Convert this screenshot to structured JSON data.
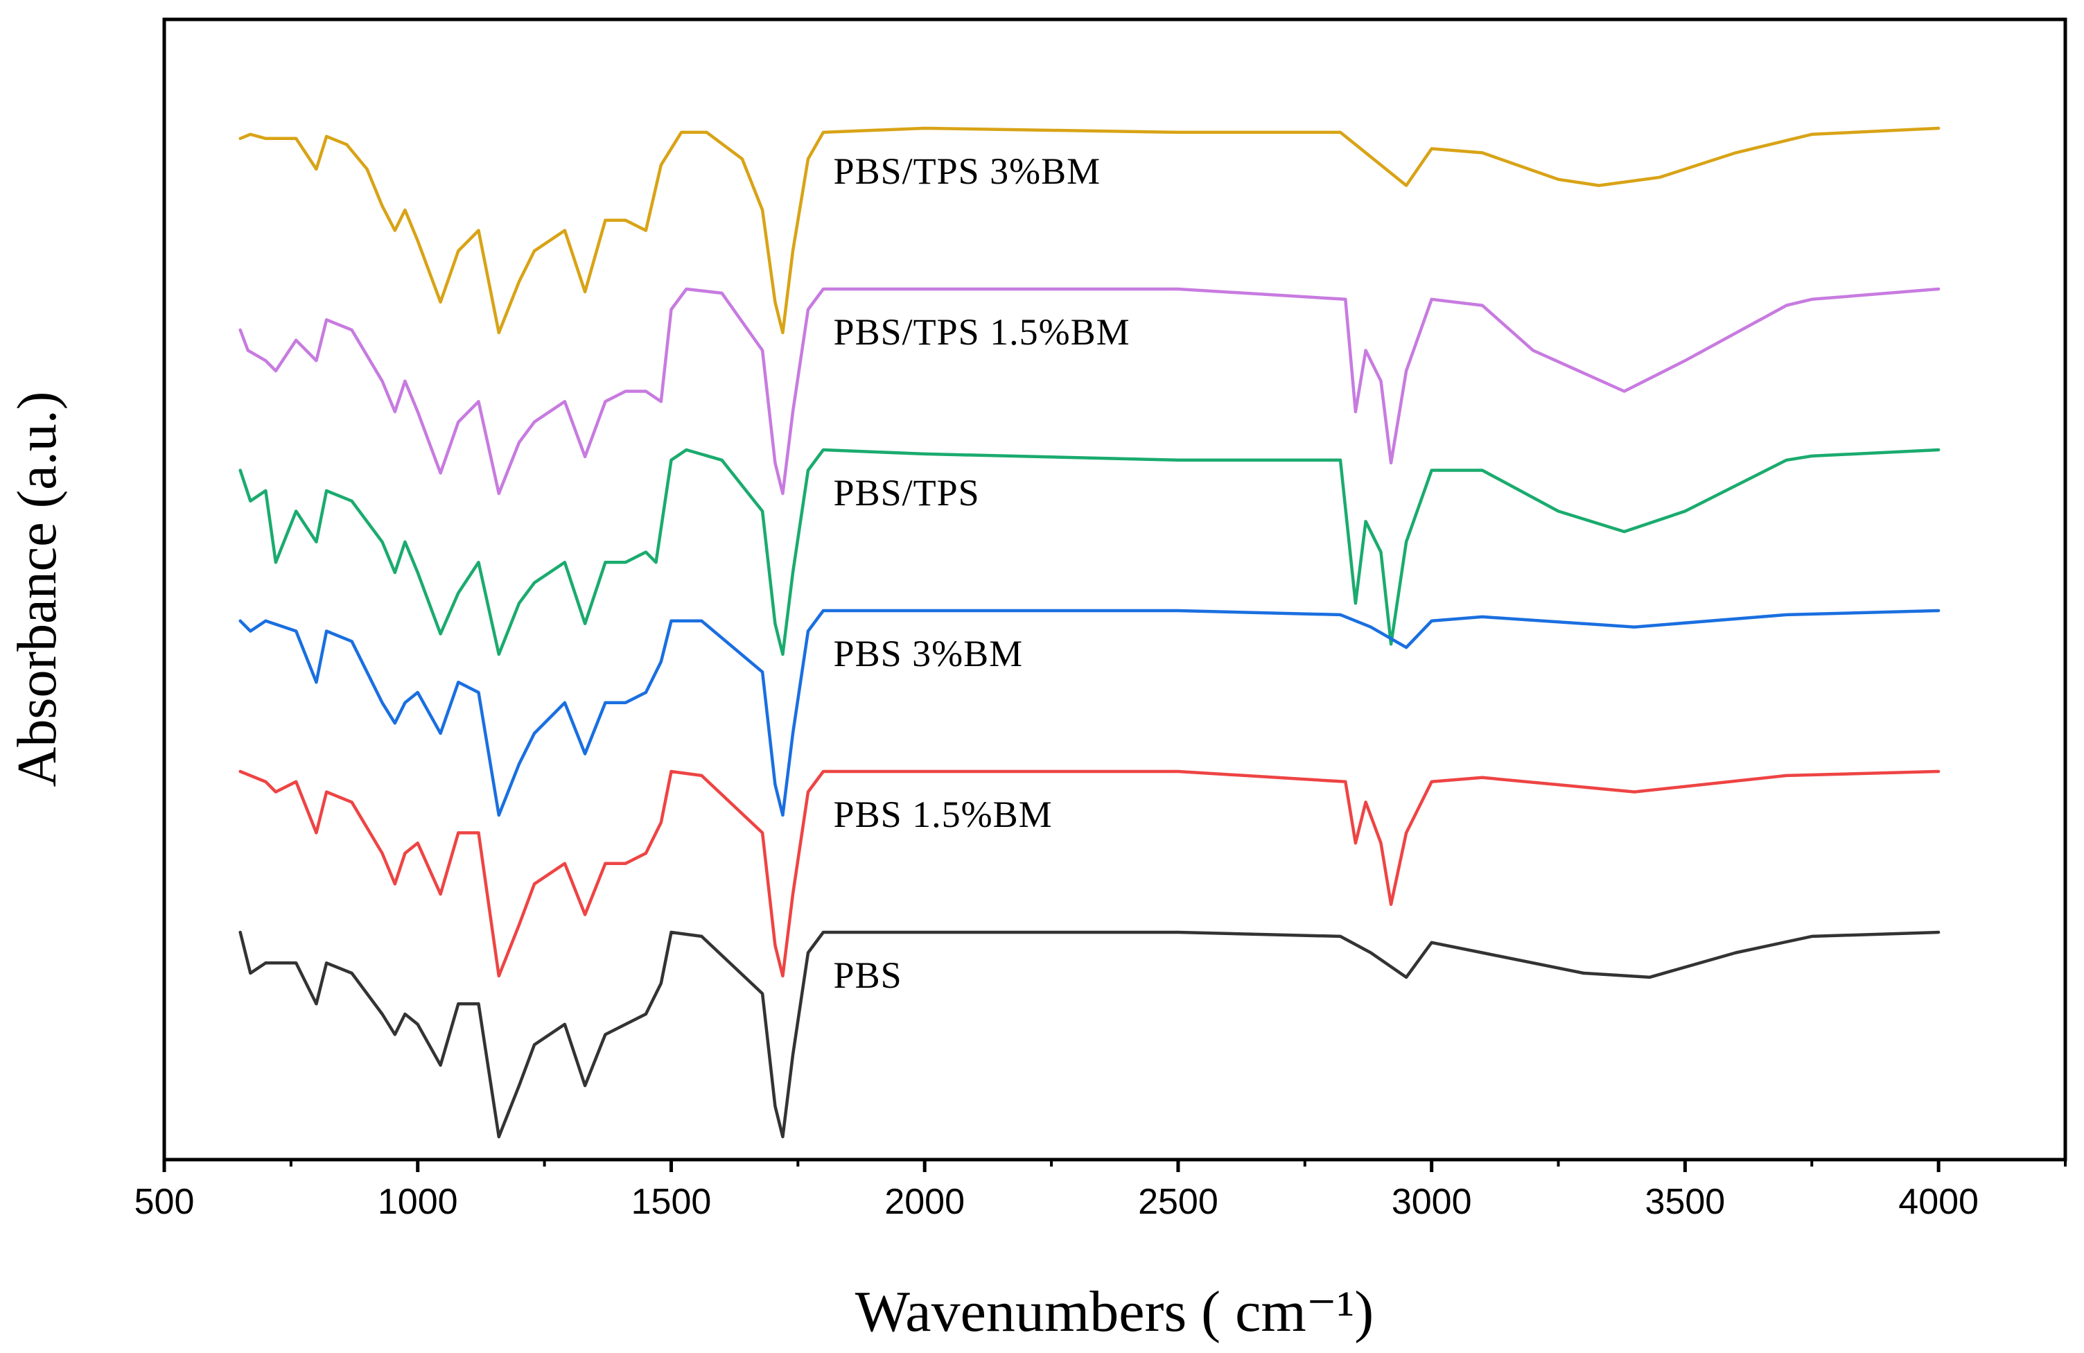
{
  "chart_data": {
    "type": "line",
    "title": "",
    "xlabel": "Wavenumbers ( cm⁻¹)",
    "ylabel": "Absorbance (a.u.)",
    "xlim": [
      500,
      4250
    ],
    "x_ticks": [
      500,
      1000,
      1500,
      2000,
      2500,
      3000,
      3500,
      4000
    ],
    "x_tick_labels": [
      "500",
      "1000",
      "1500",
      "2000",
      "2500",
      "3000",
      "3500",
      "4000"
    ],
    "y_ticks_shown": false,
    "grid": false,
    "series": [
      {
        "name": "PBS/TPS 3%BM",
        "color": "#d8a316",
        "offset": 5,
        "points": [
          [
            650,
            0.05
          ],
          [
            670,
            0.03
          ],
          [
            700,
            0.05
          ],
          [
            760,
            0.05
          ],
          [
            800,
            0.2
          ],
          [
            820,
            0.04
          ],
          [
            860,
            0.08
          ],
          [
            900,
            0.2
          ],
          [
            930,
            0.38
          ],
          [
            955,
            0.5
          ],
          [
            975,
            0.4
          ],
          [
            1000,
            0.55
          ],
          [
            1045,
            0.85
          ],
          [
            1080,
            0.6
          ],
          [
            1120,
            0.5
          ],
          [
            1160,
            1.0
          ],
          [
            1200,
            0.75
          ],
          [
            1230,
            0.6
          ],
          [
            1290,
            0.5
          ],
          [
            1330,
            0.8
          ],
          [
            1370,
            0.45
          ],
          [
            1410,
            0.45
          ],
          [
            1450,
            0.5
          ],
          [
            1480,
            0.18
          ],
          [
            1520,
            0.02
          ],
          [
            1570,
            0.02
          ],
          [
            1640,
            0.15
          ],
          [
            1680,
            0.4
          ],
          [
            1705,
            0.85
          ],
          [
            1720,
            1.0
          ],
          [
            1740,
            0.6
          ],
          [
            1770,
            0.15
          ],
          [
            1800,
            0.02
          ],
          [
            2000,
            0.0
          ],
          [
            2500,
            0.02
          ],
          [
            2820,
            0.02
          ],
          [
            2870,
            0.12
          ],
          [
            2950,
            0.28
          ],
          [
            3000,
            0.1
          ],
          [
            3100,
            0.12
          ],
          [
            3250,
            0.25
          ],
          [
            3330,
            0.28
          ],
          [
            3450,
            0.24
          ],
          [
            3600,
            0.12
          ],
          [
            3750,
            0.03
          ],
          [
            4000,
            0.0
          ]
        ]
      },
      {
        "name": "PBS/TPS 1.5%BM",
        "color": "#c77be0",
        "offset": 4,
        "points": [
          [
            650,
            0.2
          ],
          [
            665,
            0.3
          ],
          [
            700,
            0.35
          ],
          [
            720,
            0.4
          ],
          [
            760,
            0.25
          ],
          [
            800,
            0.35
          ],
          [
            820,
            0.15
          ],
          [
            870,
            0.2
          ],
          [
            930,
            0.45
          ],
          [
            955,
            0.6
          ],
          [
            975,
            0.45
          ],
          [
            1000,
            0.6
          ],
          [
            1045,
            0.9
          ],
          [
            1080,
            0.65
          ],
          [
            1120,
            0.55
          ],
          [
            1160,
            1.0
          ],
          [
            1200,
            0.75
          ],
          [
            1230,
            0.65
          ],
          [
            1290,
            0.55
          ],
          [
            1330,
            0.82
          ],
          [
            1370,
            0.55
          ],
          [
            1410,
            0.5
          ],
          [
            1450,
            0.5
          ],
          [
            1480,
            0.55
          ],
          [
            1500,
            0.1
          ],
          [
            1530,
            0.0
          ],
          [
            1600,
            0.02
          ],
          [
            1680,
            0.3
          ],
          [
            1705,
            0.85
          ],
          [
            1720,
            1.0
          ],
          [
            1740,
            0.6
          ],
          [
            1770,
            0.1
          ],
          [
            1800,
            0.0
          ],
          [
            2000,
            0.0
          ],
          [
            2500,
            0.0
          ],
          [
            2830,
            0.05
          ],
          [
            2850,
            0.6
          ],
          [
            2870,
            0.3
          ],
          [
            2900,
            0.45
          ],
          [
            2920,
            0.85
          ],
          [
            2950,
            0.4
          ],
          [
            3000,
            0.05
          ],
          [
            3100,
            0.08
          ],
          [
            3200,
            0.3
          ],
          [
            3380,
            0.5
          ],
          [
            3500,
            0.35
          ],
          [
            3700,
            0.08
          ],
          [
            3750,
            0.05
          ],
          [
            4000,
            0.0
          ]
        ]
      },
      {
        "name": "PBS/TPS",
        "color": "#1aab6e",
        "offset": 3,
        "points": [
          [
            650,
            0.1
          ],
          [
            670,
            0.25
          ],
          [
            700,
            0.2
          ],
          [
            720,
            0.55
          ],
          [
            760,
            0.3
          ],
          [
            800,
            0.45
          ],
          [
            820,
            0.2
          ],
          [
            870,
            0.25
          ],
          [
            930,
            0.45
          ],
          [
            955,
            0.6
          ],
          [
            975,
            0.45
          ],
          [
            1000,
            0.6
          ],
          [
            1045,
            0.9
          ],
          [
            1080,
            0.7
          ],
          [
            1120,
            0.55
          ],
          [
            1160,
            1.0
          ],
          [
            1200,
            0.75
          ],
          [
            1230,
            0.65
          ],
          [
            1290,
            0.55
          ],
          [
            1330,
            0.85
          ],
          [
            1370,
            0.55
          ],
          [
            1410,
            0.55
          ],
          [
            1450,
            0.5
          ],
          [
            1470,
            0.55
          ],
          [
            1500,
            0.05
          ],
          [
            1530,
            0.0
          ],
          [
            1600,
            0.05
          ],
          [
            1680,
            0.3
          ],
          [
            1705,
            0.85
          ],
          [
            1720,
            1.0
          ],
          [
            1740,
            0.6
          ],
          [
            1770,
            0.1
          ],
          [
            1800,
            0.0
          ],
          [
            2000,
            0.02
          ],
          [
            2500,
            0.05
          ],
          [
            2820,
            0.05
          ],
          [
            2850,
            0.75
          ],
          [
            2870,
            0.35
          ],
          [
            2900,
            0.5
          ],
          [
            2920,
            0.95
          ],
          [
            2950,
            0.45
          ],
          [
            3000,
            0.1
          ],
          [
            3100,
            0.1
          ],
          [
            3250,
            0.3
          ],
          [
            3380,
            0.4
          ],
          [
            3500,
            0.3
          ],
          [
            3700,
            0.05
          ],
          [
            3750,
            0.03
          ],
          [
            4000,
            0.0
          ]
        ]
      },
      {
        "name": "PBS 3%BM",
        "color": "#1a6fe0",
        "offset": 2,
        "points": [
          [
            650,
            0.05
          ],
          [
            670,
            0.1
          ],
          [
            700,
            0.05
          ],
          [
            760,
            0.1
          ],
          [
            800,
            0.35
          ],
          [
            820,
            0.1
          ],
          [
            870,
            0.15
          ],
          [
            930,
            0.45
          ],
          [
            955,
            0.55
          ],
          [
            975,
            0.45
          ],
          [
            1000,
            0.4
          ],
          [
            1045,
            0.6
          ],
          [
            1080,
            0.35
          ],
          [
            1120,
            0.4
          ],
          [
            1160,
            1.0
          ],
          [
            1200,
            0.75
          ],
          [
            1230,
            0.6
          ],
          [
            1290,
            0.45
          ],
          [
            1330,
            0.7
          ],
          [
            1370,
            0.45
          ],
          [
            1410,
            0.45
          ],
          [
            1450,
            0.4
          ],
          [
            1480,
            0.25
          ],
          [
            1500,
            0.05
          ],
          [
            1560,
            0.05
          ],
          [
            1680,
            0.3
          ],
          [
            1705,
            0.85
          ],
          [
            1720,
            1.0
          ],
          [
            1740,
            0.6
          ],
          [
            1770,
            0.1
          ],
          [
            1800,
            0.0
          ],
          [
            2000,
            0.0
          ],
          [
            2500,
            0.0
          ],
          [
            2820,
            0.02
          ],
          [
            2880,
            0.08
          ],
          [
            2950,
            0.18
          ],
          [
            3000,
            0.05
          ],
          [
            3100,
            0.03
          ],
          [
            3400,
            0.08
          ],
          [
            3700,
            0.02
          ],
          [
            4000,
            0.0
          ]
        ]
      },
      {
        "name": "PBS 1.5%BM",
        "color": "#ee4444",
        "offset": 1,
        "points": [
          [
            650,
            0.0
          ],
          [
            700,
            0.05
          ],
          [
            720,
            0.1
          ],
          [
            760,
            0.05
          ],
          [
            800,
            0.3
          ],
          [
            820,
            0.1
          ],
          [
            870,
            0.15
          ],
          [
            930,
            0.4
          ],
          [
            955,
            0.55
          ],
          [
            975,
            0.4
          ],
          [
            1000,
            0.35
          ],
          [
            1045,
            0.6
          ],
          [
            1080,
            0.3
          ],
          [
            1120,
            0.3
          ],
          [
            1160,
            1.0
          ],
          [
            1200,
            0.75
          ],
          [
            1230,
            0.55
          ],
          [
            1290,
            0.45
          ],
          [
            1330,
            0.7
          ],
          [
            1370,
            0.45
          ],
          [
            1410,
            0.45
          ],
          [
            1450,
            0.4
          ],
          [
            1480,
            0.25
          ],
          [
            1500,
            0.0
          ],
          [
            1560,
            0.02
          ],
          [
            1680,
            0.3
          ],
          [
            1705,
            0.85
          ],
          [
            1720,
            1.0
          ],
          [
            1740,
            0.6
          ],
          [
            1770,
            0.1
          ],
          [
            1800,
            0.0
          ],
          [
            2000,
            0.0
          ],
          [
            2500,
            0.0
          ],
          [
            2830,
            0.05
          ],
          [
            2850,
            0.35
          ],
          [
            2870,
            0.15
          ],
          [
            2900,
            0.35
          ],
          [
            2920,
            0.65
          ],
          [
            2950,
            0.3
          ],
          [
            3000,
            0.05
          ],
          [
            3100,
            0.03
          ],
          [
            3400,
            0.1
          ],
          [
            3700,
            0.02
          ],
          [
            4000,
            0.0
          ]
        ]
      },
      {
        "name": "PBS",
        "color": "#333333",
        "offset": 0,
        "points": [
          [
            650,
            0.0
          ],
          [
            670,
            0.2
          ],
          [
            700,
            0.15
          ],
          [
            760,
            0.15
          ],
          [
            800,
            0.35
          ],
          [
            820,
            0.15
          ],
          [
            870,
            0.2
          ],
          [
            930,
            0.4
          ],
          [
            955,
            0.5
          ],
          [
            975,
            0.4
          ],
          [
            1000,
            0.45
          ],
          [
            1045,
            0.65
          ],
          [
            1080,
            0.35
          ],
          [
            1120,
            0.35
          ],
          [
            1160,
            1.0
          ],
          [
            1200,
            0.75
          ],
          [
            1230,
            0.55
          ],
          [
            1290,
            0.45
          ],
          [
            1330,
            0.75
          ],
          [
            1370,
            0.5
          ],
          [
            1410,
            0.45
          ],
          [
            1450,
            0.4
          ],
          [
            1480,
            0.25
          ],
          [
            1500,
            0.0
          ],
          [
            1560,
            0.02
          ],
          [
            1680,
            0.3
          ],
          [
            1705,
            0.85
          ],
          [
            1720,
            1.0
          ],
          [
            1740,
            0.6
          ],
          [
            1770,
            0.1
          ],
          [
            1800,
            0.0
          ],
          [
            2000,
            0.0
          ],
          [
            2500,
            0.0
          ],
          [
            2820,
            0.02
          ],
          [
            2880,
            0.1
          ],
          [
            2950,
            0.22
          ],
          [
            3000,
            0.05
          ],
          [
            3100,
            0.1
          ],
          [
            3300,
            0.2
          ],
          [
            3430,
            0.22
          ],
          [
            3600,
            0.1
          ],
          [
            3750,
            0.02
          ],
          [
            4000,
            0.0
          ]
        ]
      }
    ],
    "annotations": [
      {
        "text": "PBS/TPS 3%BM",
        "x": 2300,
        "series": "PBS/TPS 3%BM"
      },
      {
        "text": "PBS/TPS 1.5%BM",
        "x": 2300,
        "series": "PBS/TPS 1.5%BM"
      },
      {
        "text": "PBS/TPS",
        "x": 2300,
        "series": "PBS/TPS"
      },
      {
        "text": "PBS 3%BM",
        "x": 2300,
        "series": "PBS 3%BM"
      },
      {
        "text": "PBS 1.5%BM",
        "x": 2300,
        "series": "PBS 1.5%BM"
      },
      {
        "text": "PBS",
        "x": 2300,
        "series": "PBS"
      }
    ]
  }
}
